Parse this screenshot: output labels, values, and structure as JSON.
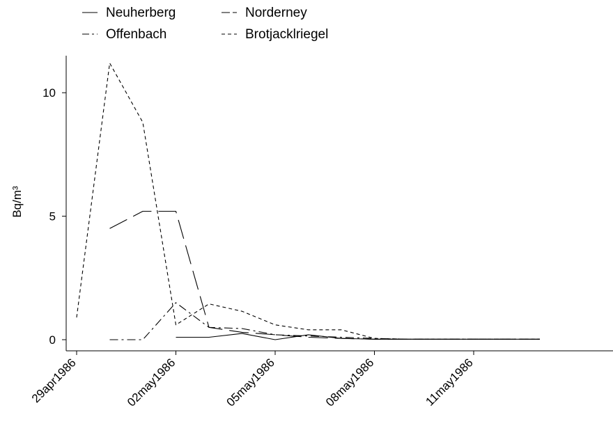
{
  "chart_data": {
    "type": "line",
    "title": "",
    "xlabel": "",
    "ylabel": "Bq/m³",
    "ylim": [
      0,
      11.5
    ],
    "xlim": [
      "1986-04-29",
      "1986-05-15"
    ],
    "yticks": [
      0,
      5,
      10
    ],
    "xticks": [
      "29apr1986",
      "02may1986",
      "05may1986",
      "08may1986",
      "11may1986"
    ],
    "grid": false,
    "legend_position": "top",
    "series": [
      {
        "name": "Neuherberg",
        "x": [
          "1986-05-02",
          "1986-05-03",
          "1986-05-04",
          "1986-05-05",
          "1986-05-06",
          "1986-05-07",
          "1986-05-08",
          "1986-05-09",
          "1986-05-10",
          "1986-05-11",
          "1986-05-12",
          "1986-05-13"
        ],
        "values": [
          0.1,
          0.1,
          0.25,
          0.0,
          0.2,
          0.05,
          0.02,
          0.02,
          0.02,
          0.02,
          0.02,
          0.02
        ]
      },
      {
        "name": "Norderney",
        "x": [
          "1986-04-30",
          "1986-05-01",
          "1986-05-02",
          "1986-05-03",
          "1986-05-04",
          "1986-05-05",
          "1986-05-06",
          "1986-05-07",
          "1986-05-08",
          "1986-05-09",
          "1986-05-10",
          "1986-05-11",
          "1986-05-12",
          "1986-05-13"
        ],
        "values": [
          4.5,
          5.2,
          5.2,
          0.5,
          0.3,
          0.2,
          0.1,
          0.05,
          0.02,
          0.02,
          0.02,
          0.02,
          0.02,
          0.02
        ]
      },
      {
        "name": "Offenbach",
        "x": [
          "1986-04-30",
          "1986-05-01",
          "1986-05-02",
          "1986-05-03",
          "1986-05-04",
          "1986-05-05",
          "1986-05-06",
          "1986-05-07",
          "1986-05-08",
          "1986-05-09",
          "1986-05-10",
          "1986-05-11",
          "1986-05-12",
          "1986-05-13"
        ],
        "values": [
          0.0,
          0.0,
          1.5,
          0.5,
          0.45,
          0.2,
          0.15,
          0.1,
          0.05,
          0.02,
          0.02,
          0.02,
          0.02,
          0.02
        ]
      },
      {
        "name": "Brotjacklriegel",
        "x": [
          "1986-04-29",
          "1986-04-30",
          "1986-05-01",
          "1986-05-02",
          "1986-05-03",
          "1986-05-04",
          "1986-05-05",
          "1986-05-06",
          "1986-05-07",
          "1986-05-08",
          "1986-05-09",
          "1986-05-10",
          "1986-05-11",
          "1986-05-12",
          "1986-05-13"
        ],
        "values": [
          0.9,
          11.2,
          8.8,
          0.6,
          1.45,
          1.15,
          0.6,
          0.4,
          0.4,
          0.05,
          0.02,
          0.02,
          0.02,
          0.02,
          0.02
        ]
      }
    ],
    "legend": [
      "Neuherberg",
      "Norderney",
      "Offenbach",
      "Brotjacklriegel"
    ]
  }
}
